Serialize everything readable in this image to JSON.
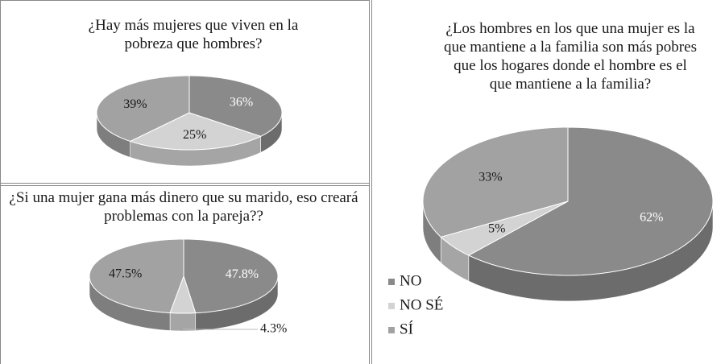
{
  "chart_data": [
    {
      "type": "pie",
      "title": "¿Hay más mujeres que viven en la pobreza que hombres?",
      "categories": [
        "NO",
        "NO SÉ",
        "SÍ"
      ],
      "values": [
        36,
        25,
        39
      ],
      "value_labels": [
        "36%",
        "25%",
        "39%"
      ],
      "colors": [
        "#8a8a8a",
        "#d3d3d3",
        "#a2a2a2"
      ]
    },
    {
      "type": "pie",
      "title": "¿Si una mujer gana más dinero que su marido, eso creará problemas con la pareja??",
      "categories": [
        "NO",
        "NO SÉ",
        "SÍ"
      ],
      "values": [
        47.8,
        4.3,
        47.5
      ],
      "value_labels": [
        "47.8%",
        "4.3%",
        "47.5%"
      ],
      "colors": [
        "#8a8a8a",
        "#d3d3d3",
        "#a2a2a2"
      ]
    },
    {
      "type": "pie",
      "title": "¿Los hombres en los que una mujer es la que mantiene a la familia son más pobres que los hogares donde el hombre es el que mantiene a la familia?",
      "categories": [
        "NO",
        "NO SÉ",
        "SÍ"
      ],
      "values": [
        62,
        5,
        33
      ],
      "value_labels": [
        "62%",
        "5%",
        "33%"
      ],
      "colors": [
        "#8a8a8a",
        "#d3d3d3",
        "#a2a2a2"
      ],
      "legend": "bottom-left"
    }
  ]
}
